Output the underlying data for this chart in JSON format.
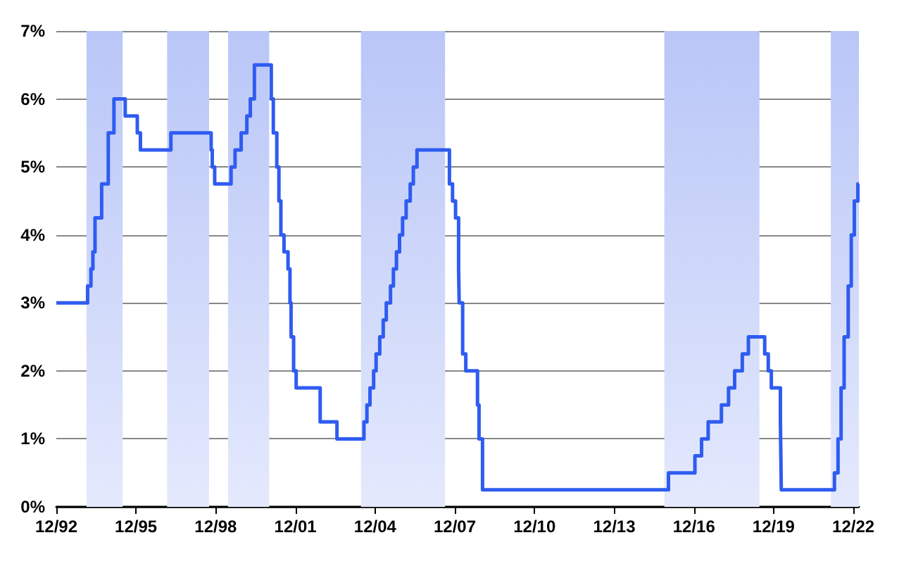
{
  "chart_data": {
    "type": "step",
    "x": [
      "1992-12-01",
      "1994-02-04",
      "1994-03-22",
      "1994-04-18",
      "1994-05-17",
      "1994-08-16",
      "1994-11-15",
      "1995-02-01",
      "1995-07-06",
      "1995-12-19",
      "1996-01-31",
      "1997-03-25",
      "1998-09-29",
      "1998-10-15",
      "1998-11-17",
      "1999-06-30",
      "1999-08-24",
      "1999-11-16",
      "2000-02-02",
      "2000-03-21",
      "2000-05-16",
      "2001-01-03",
      "2001-01-31",
      "2001-03-20",
      "2001-04-18",
      "2001-05-15",
      "2001-06-27",
      "2001-08-21",
      "2001-09-17",
      "2001-10-02",
      "2001-11-06",
      "2001-12-11",
      "2002-11-06",
      "2003-06-25",
      "2004-06-30",
      "2004-08-10",
      "2004-09-21",
      "2004-11-10",
      "2004-12-14",
      "2005-02-02",
      "2005-03-22",
      "2005-05-03",
      "2005-06-30",
      "2005-08-09",
      "2005-09-20",
      "2005-11-01",
      "2005-12-13",
      "2006-01-31",
      "2006-03-28",
      "2006-05-10",
      "2006-06-29",
      "2007-09-18",
      "2007-10-31",
      "2007-12-11",
      "2008-01-22",
      "2008-01-30",
      "2008-03-18",
      "2008-04-30",
      "2008-10-08",
      "2008-10-29",
      "2008-12-16",
      "2015-12-16",
      "2016-12-14",
      "2017-03-15",
      "2017-06-14",
      "2017-12-13",
      "2018-03-21",
      "2018-06-13",
      "2018-09-26",
      "2018-12-19",
      "2019-07-31",
      "2019-09-18",
      "2019-10-30",
      "2020-03-03",
      "2020-03-15",
      "2022-03-16",
      "2022-05-04",
      "2022-06-15",
      "2022-07-27",
      "2022-09-21",
      "2022-11-02",
      "2022-12-14",
      "2023-02-01",
      "2023-02-15"
    ],
    "series": [
      {
        "color": "#2f5cf0",
        "values": [
          3,
          3.25,
          3.5,
          3.75,
          4.25,
          4.75,
          5.5,
          6,
          5.75,
          5.5,
          5.25,
          5.5,
          5.25,
          5,
          4.75,
          5,
          5.25,
          5.5,
          5.75,
          6,
          6.5,
          6,
          5.5,
          5,
          4.5,
          4,
          3.75,
          3.5,
          3,
          2.5,
          2,
          1.75,
          1.25,
          1,
          1.25,
          1.5,
          1.75,
          2,
          2.25,
          2.5,
          2.75,
          3,
          3.25,
          3.5,
          3.75,
          4,
          4.25,
          4.5,
          4.75,
          5,
          5.25,
          4.75,
          4.5,
          4.25,
          3.5,
          3,
          2.25,
          2,
          1.5,
          1,
          0.25,
          0.5,
          0.75,
          1,
          1.25,
          1.5,
          1.75,
          2,
          2.25,
          2.5,
          2.25,
          2,
          1.75,
          1.25,
          0.25,
          0.5,
          1,
          1.75,
          2.5,
          3.25,
          4,
          4.5,
          4.75,
          4.75
        ]
      }
    ],
    "xlim": [
      "1992-12-01",
      "2023-02-15"
    ],
    "xticks": [
      {
        "value": "1992-12-01",
        "label": "12/92"
      },
      {
        "value": "1995-12-01",
        "label": "12/95"
      },
      {
        "value": "1998-12-01",
        "label": "12/98"
      },
      {
        "value": "2001-12-01",
        "label": "12/01"
      },
      {
        "value": "2004-12-01",
        "label": "12/04"
      },
      {
        "value": "2007-12-01",
        "label": "12/07"
      },
      {
        "value": "2010-12-01",
        "label": "12/10"
      },
      {
        "value": "2013-12-01",
        "label": "12/13"
      },
      {
        "value": "2016-12-01",
        "label": "12/16"
      },
      {
        "value": "2019-12-01",
        "label": "12/19"
      },
      {
        "value": "2022-12-01",
        "label": "12/22"
      }
    ],
    "ylim": [
      0,
      7
    ],
    "yticks": [
      {
        "value": 0,
        "label": "0%"
      },
      {
        "value": 1,
        "label": "1%"
      },
      {
        "value": 2,
        "label": "2%"
      },
      {
        "value": 3,
        "label": "3%"
      },
      {
        "value": 4,
        "label": "4%"
      },
      {
        "value": 5,
        "label": "5%"
      },
      {
        "value": 6,
        "label": "6%"
      },
      {
        "value": 7,
        "label": "7%"
      }
    ],
    "bands": [
      {
        "axis": "x",
        "from": "1994-01-20",
        "to": "1995-06-01",
        "color": "#b9c6f7"
      },
      {
        "axis": "x",
        "from": "1997-02-01",
        "to": "1998-09-01",
        "color": "#b9c6f7"
      },
      {
        "axis": "x",
        "from": "1999-05-20",
        "to": "2000-12-05",
        "color": "#b9c6f7"
      },
      {
        "axis": "x",
        "from": "2004-05-20",
        "to": "2007-07-20",
        "color": "#b9c6f7"
      },
      {
        "axis": "x",
        "from": "2015-10-20",
        "to": "2019-05-20",
        "color": "#b9c6f7"
      },
      {
        "axis": "x",
        "from": "2022-01-25",
        "to": "2023-02-15",
        "color": "#b9c6f7"
      }
    ],
    "grid": "y",
    "marker": "none",
    "line_style": "solid"
  }
}
